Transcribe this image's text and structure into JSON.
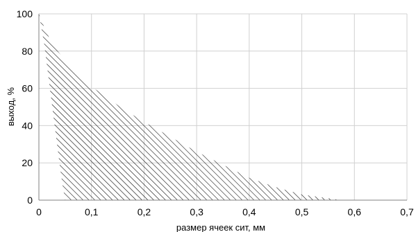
{
  "chart_data": {
    "type": "area",
    "title": "",
    "xlabel": "размер ячеек сит, мм",
    "ylabel": "выход, %",
    "xlim": [
      0,
      0.7
    ],
    "ylim": [
      0,
      100
    ],
    "x_ticks": [
      0,
      0.1,
      0.2,
      0.3,
      0.4,
      0.5,
      0.6,
      0.7
    ],
    "y_ticks": [
      0,
      20,
      40,
      60,
      80,
      100
    ],
    "x_tick_labels": [
      "0",
      "0,1",
      "0,2",
      "0,3",
      "0,4",
      "0,5",
      "0,6",
      "0,7"
    ],
    "y_tick_labels": [
      "0",
      "20",
      "40",
      "60",
      "80",
      "100"
    ],
    "grid": true,
    "fill": "hatched",
    "series": [
      {
        "role": "upper_boundary",
        "x": [
          0.0,
          0.01,
          0.02,
          0.03,
          0.05,
          0.07,
          0.1,
          0.13,
          0.16,
          0.2,
          0.25,
          0.3,
          0.35,
          0.4,
          0.45,
          0.5,
          0.55,
          0.575
        ],
        "y": [
          100,
          93,
          87,
          82,
          75,
          69,
          61,
          55,
          49,
          42,
          34,
          26,
          19,
          12,
          7,
          3,
          1,
          0
        ]
      },
      {
        "role": "lower_boundary",
        "x": [
          0.0,
          0.01,
          0.02,
          0.03,
          0.04,
          0.045,
          0.05
        ],
        "y": [
          100,
          84,
          62,
          40,
          18,
          8,
          0
        ]
      }
    ]
  },
  "colors": {
    "grid": "#d0d0d0",
    "axis": "#808080",
    "hatch": "#000000"
  }
}
